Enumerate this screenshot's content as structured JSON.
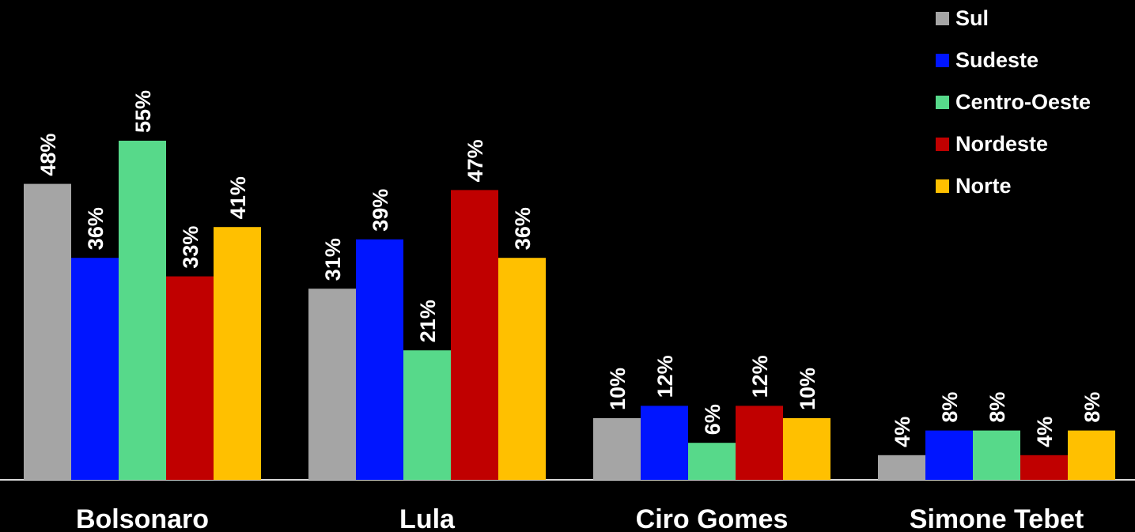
{
  "chart_data": {
    "type": "bar",
    "categories": [
      "Bolsonaro",
      "Lula",
      "Ciro Gomes",
      "Simone Tebet"
    ],
    "series": [
      {
        "name": "Sul",
        "color": "#A5A5A5",
        "values": [
          48,
          31,
          10,
          4
        ]
      },
      {
        "name": "Sudeste",
        "color": "#0015FF",
        "values": [
          36,
          39,
          12,
          8
        ]
      },
      {
        "name": "Centro-Oeste",
        "color": "#57D98A",
        "values": [
          55,
          21,
          6,
          8
        ]
      },
      {
        "name": "Nordeste",
        "color": "#C00000",
        "values": [
          33,
          47,
          12,
          4
        ]
      },
      {
        "name": "Norte",
        "color": "#FFC000",
        "values": [
          41,
          36,
          10,
          8
        ]
      }
    ],
    "value_suffix": "%",
    "ylim": [
      0,
      55
    ],
    "legend_position": "top-right",
    "grid": false,
    "background": "#000000",
    "text_color": "#FFFFFF"
  }
}
